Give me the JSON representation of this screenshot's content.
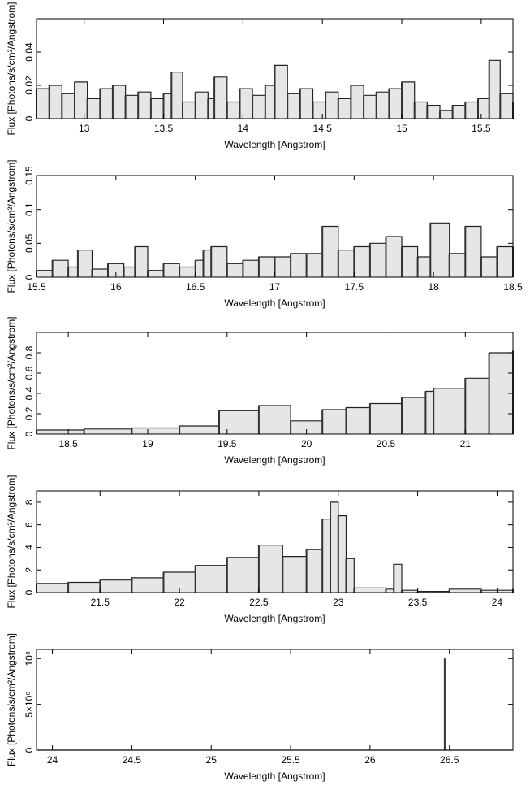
{
  "chart_data": [
    {
      "type": "line",
      "xlabel": "Wavelength [Angstrom]",
      "ylabel": "Flux [Photons/s/cm²/Angstrom]",
      "xlim": [
        12.7,
        15.7
      ],
      "ylim": [
        0,
        0.06
      ],
      "xticks": [
        13,
        13.5,
        14,
        14.5,
        15,
        15.5
      ],
      "xtick_labels": [
        "13",
        "13.5",
        "14",
        "14.5",
        "15",
        "15.5"
      ],
      "yticks": [
        0,
        0.02,
        0.04
      ],
      "ytick_labels": [
        "0",
        "0.02",
        "0.04"
      ],
      "grid": false,
      "series": [
        {
          "x": [
            12.7,
            12.78,
            12.86,
            12.94,
            13.02,
            13.1,
            13.18,
            13.26,
            13.34,
            13.42,
            13.5,
            13.55,
            13.62,
            13.7,
            13.78,
            13.82,
            13.9,
            13.98,
            14.06,
            14.14,
            14.2,
            14.28,
            14.36,
            14.44,
            14.52,
            14.6,
            14.68,
            14.76,
            14.84,
            14.92,
            15.0,
            15.08,
            15.16,
            15.24,
            15.32,
            15.4,
            15.48,
            15.55,
            15.62,
            15.7
          ],
          "y": [
            0.018,
            0.02,
            0.015,
            0.022,
            0.012,
            0.018,
            0.02,
            0.014,
            0.016,
            0.012,
            0.015,
            0.028,
            0.01,
            0.016,
            0.012,
            0.025,
            0.01,
            0.018,
            0.014,
            0.02,
            0.032,
            0.015,
            0.018,
            0.01,
            0.016,
            0.012,
            0.02,
            0.014,
            0.016,
            0.018,
            0.022,
            0.01,
            0.008,
            0.005,
            0.008,
            0.01,
            0.012,
            0.035,
            0.015,
            0.01
          ]
        }
      ]
    },
    {
      "type": "line",
      "xlabel": "Wavelength [Angstrom]",
      "ylabel": "Flux [Photons/s/cm²/Angstrom]",
      "xlim": [
        15.5,
        18.5
      ],
      "ylim": [
        0,
        0.15
      ],
      "xticks": [
        15.5,
        16,
        16.5,
        17,
        17.5,
        18,
        18.5
      ],
      "xtick_labels": [
        "15.5",
        "16",
        "16.5",
        "17",
        "17.5",
        "18",
        "18.5"
      ],
      "yticks": [
        0,
        0.05,
        0.1,
        0.15
      ],
      "ytick_labels": [
        "0",
        "0.05",
        "0.1",
        "0.15"
      ],
      "grid": false,
      "series": [
        {
          "x": [
            15.5,
            15.6,
            15.7,
            15.76,
            15.85,
            15.95,
            16.05,
            16.12,
            16.2,
            16.3,
            16.4,
            16.5,
            16.55,
            16.6,
            16.7,
            16.8,
            16.9,
            17.0,
            17.1,
            17.2,
            17.3,
            17.4,
            17.5,
            17.6,
            17.7,
            17.8,
            17.9,
            17.98,
            18.1,
            18.2,
            18.3,
            18.4,
            18.5
          ],
          "y": [
            0.01,
            0.025,
            0.015,
            0.04,
            0.012,
            0.02,
            0.015,
            0.045,
            0.01,
            0.02,
            0.015,
            0.025,
            0.04,
            0.045,
            0.02,
            0.025,
            0.03,
            0.03,
            0.035,
            0.035,
            0.075,
            0.04,
            0.045,
            0.05,
            0.06,
            0.045,
            0.03,
            0.08,
            0.035,
            0.075,
            0.03,
            0.045,
            0.045
          ]
        }
      ]
    },
    {
      "type": "line",
      "xlabel": "Wavelength [Angstrom]",
      "ylabel": "Flux [Photons/s/cm²/Angstrom]",
      "xlim": [
        18.3,
        21.3
      ],
      "ylim": [
        0,
        1.0
      ],
      "xticks": [
        18.5,
        19,
        19.5,
        20,
        20.5,
        21
      ],
      "xtick_labels": [
        "18.5",
        "19",
        "19.5",
        "20",
        "20.5",
        "21"
      ],
      "yticks": [
        0,
        0.2,
        0.4,
        0.6,
        0.8
      ],
      "ytick_labels": [
        "0",
        "0.2",
        "0.4",
        "0.6",
        "0.8"
      ],
      "grid": false,
      "series": [
        {
          "x": [
            18.3,
            18.6,
            18.9,
            19.2,
            19.45,
            19.7,
            19.9,
            20.1,
            20.25,
            20.4,
            20.6,
            20.75,
            20.8,
            21.0,
            21.15,
            21.3
          ],
          "y": [
            0.04,
            0.05,
            0.06,
            0.08,
            0.23,
            0.28,
            0.13,
            0.24,
            0.26,
            0.3,
            0.36,
            0.42,
            0.45,
            0.55,
            0.8,
            0.82
          ]
        }
      ]
    },
    {
      "type": "line",
      "xlabel": "Wavelength [Angstrom]",
      "ylabel": "Flux [Photons/s/cm²/Angstrom]",
      "xlim": [
        21.1,
        24.1
      ],
      "ylim": [
        0,
        9
      ],
      "xticks": [
        21.5,
        22,
        22.5,
        23,
        23.5,
        24
      ],
      "xtick_labels": [
        "21.5",
        "22",
        "22.5",
        "23",
        "23.5",
        "24"
      ],
      "yticks": [
        0,
        2,
        4,
        6,
        8
      ],
      "ytick_labels": [
        "0",
        "2",
        "4",
        "6",
        "8"
      ],
      "grid": false,
      "series": [
        {
          "x": [
            21.1,
            21.3,
            21.5,
            21.7,
            21.9,
            22.1,
            22.3,
            22.5,
            22.65,
            22.8,
            22.9,
            22.95,
            23.0,
            23.05,
            23.1,
            23.3,
            23.35,
            23.4,
            23.5,
            23.7,
            23.9,
            24.1
          ],
          "y": [
            0.8,
            0.9,
            1.1,
            1.3,
            1.8,
            2.4,
            3.1,
            4.2,
            3.2,
            3.8,
            6.5,
            8.0,
            6.8,
            3.0,
            0.4,
            0.3,
            2.5,
            0.2,
            0.1,
            0.3,
            0.2,
            0.3
          ]
        }
      ]
    },
    {
      "type": "line",
      "xlabel": "Wavelength [Angstrom]",
      "ylabel": "Flux [Photons/s/cm²/Angstrom]",
      "xlim": [
        23.9,
        26.9
      ],
      "ylim": [
        0,
        1100000000.0
      ],
      "xticks": [
        24,
        24.5,
        25,
        25.5,
        26,
        26.5
      ],
      "xtick_labels": [
        "24",
        "24.5",
        "25",
        "25.5",
        "26",
        "26.5"
      ],
      "yticks": [
        0,
        500000000,
        1000000000
      ],
      "ytick_labels": [
        "0",
        "5×10⁸",
        "10⁹"
      ],
      "grid": false,
      "series": [
        {
          "x": [
            23.9,
            26.47,
            26.47,
            26.47,
            26.9
          ],
          "y": [
            0,
            0,
            1000000000,
            0,
            0
          ]
        }
      ]
    }
  ]
}
